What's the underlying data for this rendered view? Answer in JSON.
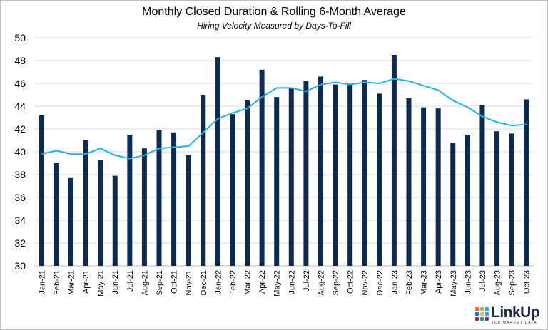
{
  "chart_data": {
    "type": "bar",
    "title": "Monthly Closed Duration & Rolling 6-Month Average",
    "subtitle": "Hiring Velocity Measured by Days-To-Fill",
    "xlabel": "",
    "ylabel": "",
    "ylim": [
      30,
      50
    ],
    "yticks": [
      30,
      32,
      34,
      36,
      38,
      40,
      42,
      44,
      46,
      48,
      50
    ],
    "grid": true,
    "legend": "none",
    "categories": [
      "Jan-21",
      "Feb-21",
      "Mar-21",
      "Apr-21",
      "May-21",
      "Jun-21",
      "Jul-21",
      "Aug-21",
      "Sep-21",
      "Oct-21",
      "Nov-21",
      "Dec-21",
      "Jan-22",
      "Feb-22",
      "Mar-22",
      "Apr-22",
      "May-22",
      "Jun-22",
      "Jul-22",
      "Aug-22",
      "Sep-22",
      "Oct-22",
      "Nov-22",
      "Dec-22",
      "Jan-23",
      "Feb-23",
      "Mar-23",
      "Apr-23",
      "May-23",
      "Jun-23",
      "Jul-23",
      "Aug-23",
      "Sep-23",
      "Oct-23"
    ],
    "series": [
      {
        "type": "bar",
        "color": "#0d2b4e",
        "values": [
          43.2,
          39.0,
          37.7,
          41.0,
          39.3,
          37.9,
          41.5,
          40.3,
          41.9,
          41.7,
          39.7,
          45.0,
          48.3,
          43.3,
          44.5,
          47.2,
          44.8,
          45.6,
          46.2,
          46.6,
          45.9,
          45.9,
          46.3,
          45.1,
          48.5,
          44.7,
          43.9,
          43.8,
          40.8,
          41.5,
          44.1,
          41.8,
          41.6,
          44.6
        ]
      },
      {
        "type": "line",
        "color": "#29aee6",
        "values": [
          39.8,
          40.1,
          39.8,
          39.8,
          40.3,
          39.7,
          39.4,
          39.7,
          40.3,
          40.4,
          40.5,
          41.7,
          42.9,
          43.4,
          43.8,
          44.8,
          45.6,
          45.6,
          45.3,
          45.9,
          46.1,
          45.9,
          46.1,
          46.0,
          46.4,
          46.2,
          45.8,
          45.4,
          44.5,
          43.9,
          43.1,
          42.6,
          42.3,
          42.4
        ]
      }
    ]
  },
  "logo": {
    "name": "LinkUp",
    "tagline": "JOB MARKET DATA",
    "dot_colors": [
      "#f15a29",
      "#8dc63f",
      "#29aee6",
      "#1b75bc",
      "#fbb040",
      "#27aae1",
      "#9e1f63",
      "#00a79d",
      "#662d91"
    ]
  }
}
